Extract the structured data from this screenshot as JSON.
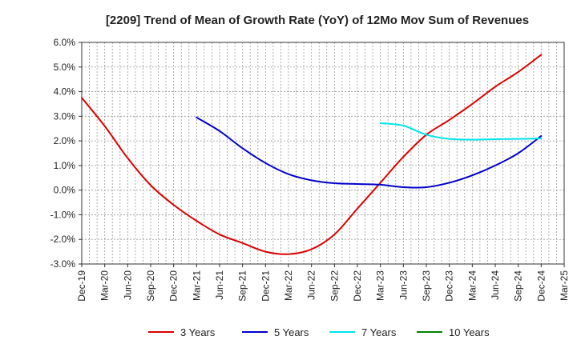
{
  "chart_data": {
    "type": "line",
    "title": "[2209]  Trend of Mean of Growth Rate (YoY) of 12Mo Mov Sum of Revenues",
    "xlabel": "",
    "ylabel": "",
    "ylim": [
      -3.0,
      6.0
    ],
    "yticks": [
      "6.0%",
      "5.0%",
      "4.0%",
      "3.0%",
      "2.0%",
      "1.0%",
      "0.0%",
      "-1.0%",
      "-2.0%",
      "-3.0%"
    ],
    "ytick_values": [
      6,
      5,
      4,
      3,
      2,
      1,
      0,
      -1,
      -2,
      -3
    ],
    "x_categories": [
      "Dec-19",
      "Mar-20",
      "Jun-20",
      "Sep-20",
      "Dec-20",
      "Mar-21",
      "Jun-21",
      "Sep-21",
      "Dec-21",
      "Mar-22",
      "Jun-22",
      "Sep-22",
      "Dec-22",
      "Mar-23",
      "Jun-23",
      "Sep-23",
      "Dec-23",
      "Mar-24",
      "Jun-24",
      "Sep-24",
      "Dec-24",
      "Mar-25"
    ],
    "grid": true,
    "legend_position": "bottom",
    "series": [
      {
        "name": "3 Years",
        "color": "#dd0000",
        "points": [
          [
            0,
            3.75
          ],
          [
            1,
            2.6
          ],
          [
            2,
            1.3
          ],
          [
            3,
            0.2
          ],
          [
            4,
            -0.6
          ],
          [
            5,
            -1.25
          ],
          [
            6,
            -1.8
          ],
          [
            7,
            -2.15
          ],
          [
            8,
            -2.5
          ],
          [
            9,
            -2.6
          ],
          [
            10,
            -2.4
          ],
          [
            11,
            -1.8
          ],
          [
            12,
            -0.75
          ],
          [
            13,
            0.3
          ],
          [
            14,
            1.35
          ],
          [
            15,
            2.25
          ],
          [
            16,
            2.85
          ],
          [
            17,
            3.5
          ],
          [
            18,
            4.2
          ],
          [
            19,
            4.8
          ],
          [
            20,
            5.5
          ]
        ]
      },
      {
        "name": "5 Years",
        "color": "#0000cc",
        "points": [
          [
            5,
            2.95
          ],
          [
            6,
            2.4
          ],
          [
            7,
            1.7
          ],
          [
            8,
            1.1
          ],
          [
            9,
            0.65
          ],
          [
            10,
            0.4
          ],
          [
            11,
            0.28
          ],
          [
            12,
            0.25
          ],
          [
            13,
            0.22
          ],
          [
            14,
            0.12
          ],
          [
            15,
            0.12
          ],
          [
            16,
            0.3
          ],
          [
            17,
            0.6
          ],
          [
            18,
            1.0
          ],
          [
            19,
            1.5
          ],
          [
            20,
            2.2
          ]
        ]
      },
      {
        "name": "7 Years",
        "color": "#00e5ee",
        "points": [
          [
            13,
            2.72
          ],
          [
            14,
            2.62
          ],
          [
            15,
            2.25
          ],
          [
            16,
            2.08
          ],
          [
            17,
            2.05
          ],
          [
            18,
            2.07
          ],
          [
            19,
            2.08
          ],
          [
            20,
            2.1
          ]
        ]
      },
      {
        "name": "10 Years",
        "color": "#008000",
        "points": []
      }
    ]
  }
}
